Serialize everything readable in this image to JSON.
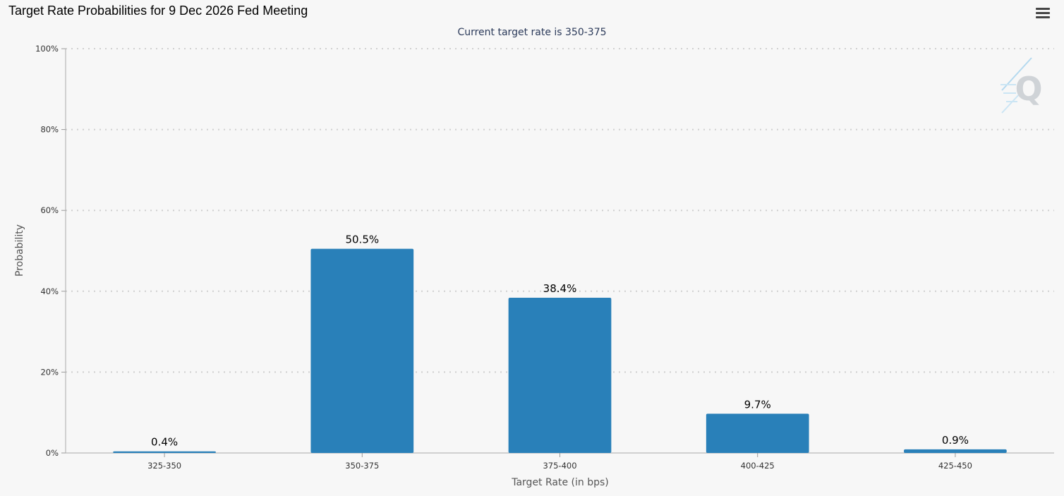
{
  "header": {
    "title": "Target Rate Probabilities for 9 Dec 2026 Fed Meeting",
    "menu_icon": "hamburger-menu-icon"
  },
  "watermark": {
    "letter": "Q"
  },
  "colors": {
    "bar": "#2980b9",
    "background": "#f7f7f7",
    "grid": "#d0d0d0"
  },
  "chart_data": {
    "type": "bar",
    "subtitle": "Current target rate is 350-375",
    "categories": [
      "325-350",
      "350-375",
      "375-400",
      "400-425",
      "425-450"
    ],
    "values": [
      0.4,
      50.5,
      38.4,
      9.7,
      0.9
    ],
    "data_labels": [
      "0.4%",
      "50.5%",
      "38.4%",
      "9.7%",
      "0.9%"
    ],
    "xlabel": "Target Rate (in bps)",
    "ylabel": "Probability",
    "ylim": [
      0,
      100
    ],
    "yticks": [
      0,
      20,
      40,
      60,
      80,
      100
    ],
    "ytick_labels": [
      "0%",
      "20%",
      "40%",
      "60%",
      "80%",
      "100%"
    ],
    "grid": true,
    "legend": false
  }
}
